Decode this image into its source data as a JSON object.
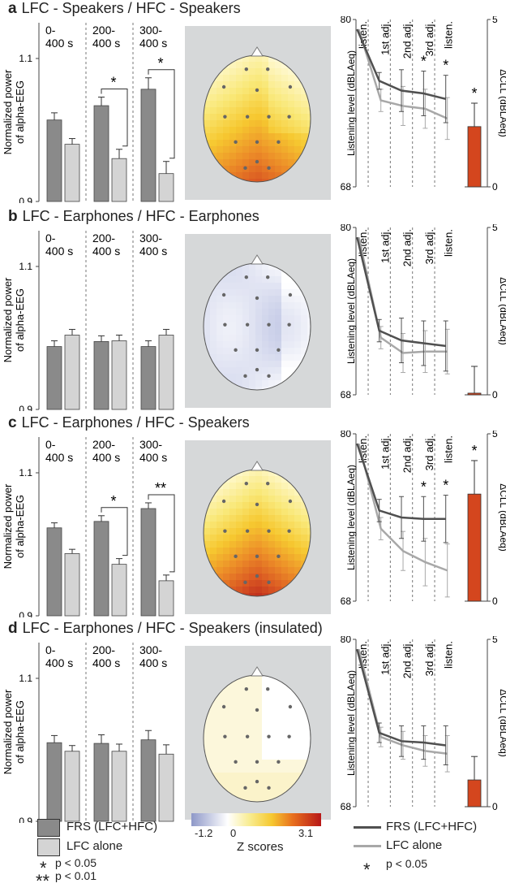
{
  "panels": [
    {
      "letter": "a",
      "title": "LFC - Speakers / HFC - Speakers",
      "bar": {
        "time_windows": [
          "0-\n400 s",
          "200-\n400 s",
          "300-\n400 s"
        ],
        "ylabel": "Normalized power\nof alpha-EEG",
        "yticks": [
          "0.9",
          "1.1"
        ],
        "ylim": [
          0.9,
          1.15
        ],
        "frs": [
          1.014,
          1.034,
          1.057
        ],
        "frs_err": [
          0.01,
          0.012,
          0.016
        ],
        "lfc": [
          0.98,
          0.96,
          0.939
        ],
        "lfc_err": [
          0.008,
          0.013,
          0.017
        ],
        "sig": [
          "",
          "*",
          "*"
        ]
      },
      "topo": {
        "scheme": "hot",
        "level": 0.8
      },
      "line": {
        "ylabel": "Listening level (dBLAeq)",
        "yticks": [
          "68",
          "80"
        ],
        "ylim": [
          68,
          80
        ],
        "stages": [
          "listen.",
          "1st adj.",
          "2nd adj.",
          "3rd adj.",
          "listen."
        ],
        "frs": [
          79.3,
          75.6,
          74.9,
          74.7,
          74.3
        ],
        "frs_err": [
          0,
          0.6,
          1.5,
          1.6,
          1.7
        ],
        "lfc": [
          79.3,
          74.2,
          73.8,
          73.6,
          72.9
        ],
        "lfc_err": [
          0,
          0.8,
          1.4,
          1.4,
          1.5
        ],
        "sig": [
          "",
          "",
          "",
          "*",
          "*"
        ],
        "delta_ylabel": "ΔCLL (dBLAeq)",
        "delta_yticks": [
          "0",
          "5"
        ],
        "delta_ylim": [
          0,
          5
        ],
        "delta": 1.8,
        "delta_err": 0.7,
        "delta_sig": "*"
      }
    },
    {
      "letter": "b",
      "title": "LFC - Earphones / HFC - Earphones",
      "bar": {
        "time_windows": [
          "0-\n400 s",
          "200-\n400 s",
          "300-\n400 s"
        ],
        "ylabel": "Normalized power\nof alpha-EEG",
        "yticks": [
          "0.9",
          "1.1"
        ],
        "ylim": [
          0.9,
          1.15
        ],
        "frs": [
          0.988,
          0.995,
          0.988
        ],
        "frs_err": [
          0.008,
          0.008,
          0.008
        ],
        "lfc": [
          1.004,
          0.996,
          1.004
        ],
        "lfc_err": [
          0.008,
          0.008,
          0.008
        ],
        "sig": [
          "",
          "",
          ""
        ]
      },
      "topo": {
        "scheme": "cool",
        "level": 0.25
      },
      "line": {
        "ylabel": "Listening level (dBLAeq)",
        "yticks": [
          "68",
          "80"
        ],
        "ylim": [
          68,
          80
        ],
        "stages": [
          "listen.",
          "1st adj.",
          "2nd adj.",
          "3rd adj.",
          "listen."
        ],
        "frs": [
          79.3,
          72.6,
          71.9,
          71.7,
          71.5
        ],
        "frs_err": [
          0,
          0.8,
          1.6,
          1.6,
          1.8
        ],
        "lfc": [
          79.3,
          72.1,
          71.0,
          71.1,
          71.1
        ],
        "lfc_err": [
          0,
          0.8,
          1.4,
          1.5,
          1.6
        ],
        "sig": [
          "",
          "",
          "",
          "",
          ""
        ],
        "delta_ylabel": "ΔCLL (dBLAeq)",
        "delta_yticks": [
          "0",
          "5"
        ],
        "delta_ylim": [
          0,
          5
        ],
        "delta": 0.05,
        "delta_err": 0.8,
        "delta_sig": ""
      }
    },
    {
      "letter": "c",
      "title": "LFC - Earphones / HFC - Speakers",
      "bar": {
        "time_windows": [
          "0-\n400 s",
          "200-\n400 s",
          "300-\n400 s"
        ],
        "ylabel": "Normalized power\nof alpha-EEG",
        "yticks": [
          "0.9",
          "1.1"
        ],
        "ylim": [
          0.9,
          1.15
        ],
        "frs": [
          1.023,
          1.032,
          1.05
        ],
        "frs_err": [
          0.007,
          0.008,
          0.008
        ],
        "lfc": [
          0.987,
          0.972,
          0.949
        ],
        "lfc_err": [
          0.006,
          0.008,
          0.008
        ],
        "sig": [
          "",
          "*",
          "**"
        ]
      },
      "topo": {
        "scheme": "hot",
        "level": 0.95
      },
      "line": {
        "ylabel": "Listening level (dBLAeq)",
        "yticks": [
          "68",
          "80"
        ],
        "ylim": [
          68,
          80
        ],
        "stages": [
          "listen.",
          "1st adj.",
          "2nd adj.",
          "3rd adj.",
          "listen."
        ],
        "frs": [
          79.3,
          74.5,
          74.0,
          73.9,
          73.9
        ],
        "frs_err": [
          0,
          0.8,
          1.5,
          1.6,
          1.7
        ],
        "lfc": [
          79.3,
          73.2,
          71.6,
          70.8,
          70.2
        ],
        "lfc_err": [
          0,
          0.8,
          1.4,
          1.7,
          1.9
        ],
        "sig": [
          "",
          "",
          "",
          "*",
          "*"
        ],
        "delta_ylabel": "ΔCLL (dBLAeq)",
        "delta_yticks": [
          "0",
          "5"
        ],
        "delta_ylim": [
          0,
          5
        ],
        "delta": 3.2,
        "delta_err": 1.0,
        "delta_sig": "*"
      }
    },
    {
      "letter": "d",
      "title": "LFC - Earphones / HFC - Speakers (insulated)",
      "bar": {
        "time_windows": [
          "0-\n400 s",
          "200-\n400 s",
          "300-\n400 s"
        ],
        "ylabel": "Normalized power\nof alpha-EEG",
        "yticks": [
          "0.9",
          "1.1"
        ],
        "ylim": [
          0.9,
          1.15
        ],
        "frs": [
          1.01,
          1.009,
          1.014
        ],
        "frs_err": [
          0.01,
          0.012,
          0.013
        ],
        "lfc": [
          0.998,
          0.998,
          0.994
        ],
        "lfc_err": [
          0.008,
          0.01,
          0.013
        ],
        "sig": [
          "",
          "",
          ""
        ]
      },
      "topo": {
        "scheme": "light",
        "level": 0.15
      },
      "line": {
        "ylabel": "Listening level (dBLAeq)",
        "yticks": [
          "68",
          "80"
        ],
        "ylim": [
          68,
          80
        ],
        "stages": [
          "listen.",
          "1st adj.",
          "2nd adj.",
          "3rd adj.",
          "listen."
        ],
        "frs": [
          79.3,
          73.3,
          72.7,
          72.6,
          72.4
        ],
        "frs_err": [
          0,
          0.7,
          1.1,
          1.2,
          1.4
        ],
        "lfc": [
          79.3,
          73.0,
          72.4,
          72.0,
          71.8
        ],
        "lfc_err": [
          0,
          0.7,
          1.0,
          1.1,
          1.3
        ],
        "sig": [
          "",
          "",
          "",
          "",
          ""
        ],
        "delta_ylabel": "ΔCLL (dBLAeq)",
        "delta_yticks": [
          "0",
          "5"
        ],
        "delta_ylim": [
          0,
          5
        ],
        "delta": 0.8,
        "delta_err": 0.7,
        "delta_sig": ""
      }
    }
  ],
  "colors": {
    "frs_bar": "#8a8a8a",
    "lfc_bar": "#d4d4d4",
    "frs_line": "#505050",
    "lfc_line": "#a8a8a8",
    "delta_bar": "#d4461e",
    "topo_bg": "#d6d8d9"
  },
  "legend": {
    "frs_label": "FRS (LFC+HFC)",
    "lfc_label": "LFC alone",
    "p05": "p < 0.05",
    "p01": "p < 0.01",
    "star1": "*",
    "star2": "**",
    "colorbar_min": "-1.2",
    "colorbar_zero": "0",
    "colorbar_max": "3.1",
    "colorbar_label": "Z scores",
    "line_frs_label": "FRS (LFC+HFC)",
    "line_lfc_label": "LFC alone",
    "line_star": "*",
    "line_p05": "p < 0.05"
  }
}
